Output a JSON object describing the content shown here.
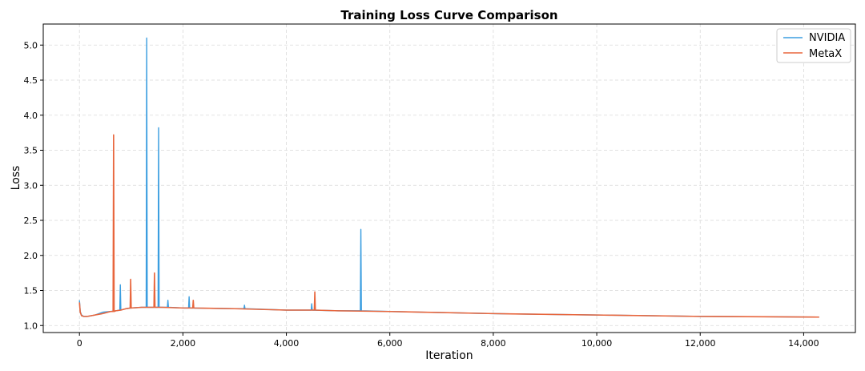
{
  "chart_data": {
    "type": "line",
    "title": "Training Loss Curve Comparison",
    "xlabel": "Iteration",
    "ylabel": "Loss",
    "xlim": [
      -700,
      15000
    ],
    "ylim": [
      0.9,
      5.3
    ],
    "grid": true,
    "legend_position": "top-right",
    "x_ticks": [
      0,
      2000,
      4000,
      6000,
      8000,
      10000,
      12000,
      14000
    ],
    "x_tick_labels": [
      "0",
      "2,000",
      "4,000",
      "6,000",
      "8,000",
      "10,000",
      "12,000",
      "14,000"
    ],
    "y_ticks": [
      1.0,
      1.5,
      2.0,
      2.5,
      3.0,
      3.5,
      4.0,
      4.5,
      5.0
    ],
    "y_tick_labels": [
      "1.0",
      "1.5",
      "2.0",
      "2.5",
      "3.0",
      "3.5",
      "4.0",
      "4.5",
      "5.0"
    ],
    "series": [
      {
        "name": "NVIDIA",
        "color": "#3b9ee0",
        "x": [
          0,
          15,
          40,
          80,
          150,
          300,
          450,
          600,
          700,
          780,
          790,
          800,
          900,
          1000,
          1200,
          1290,
          1300,
          1310,
          1400,
          1520,
          1530,
          1540,
          1600,
          1700,
          1710,
          1720,
          2000,
          2110,
          2120,
          2130,
          3000,
          3180,
          3190,
          3200,
          4000,
          4480,
          4490,
          4500,
          5000,
          5430,
          5440,
          5450,
          6000,
          8000,
          10000,
          12000,
          14300
        ],
        "y": [
          1.36,
          1.2,
          1.15,
          1.13,
          1.13,
          1.15,
          1.19,
          1.2,
          1.21,
          1.22,
          1.58,
          1.22,
          1.24,
          1.25,
          1.26,
          1.26,
          5.1,
          1.26,
          1.26,
          1.26,
          3.82,
          1.26,
          1.26,
          1.26,
          1.36,
          1.26,
          1.25,
          1.25,
          1.41,
          1.25,
          1.24,
          1.24,
          1.29,
          1.24,
          1.22,
          1.22,
          1.31,
          1.22,
          1.21,
          1.21,
          2.37,
          1.21,
          1.2,
          1.17,
          1.15,
          1.13,
          1.12
        ]
      },
      {
        "name": "MetaX",
        "color": "#e8663d",
        "x": [
          0,
          15,
          40,
          80,
          150,
          300,
          450,
          600,
          650,
          660,
          670,
          700,
          800,
          900,
          980,
          990,
          1000,
          1200,
          1440,
          1450,
          1460,
          1600,
          2000,
          2190,
          2200,
          2210,
          3000,
          4000,
          4540,
          4550,
          4560,
          5000,
          6000,
          8000,
          10000,
          12000,
          14300
        ],
        "y": [
          1.33,
          1.19,
          1.14,
          1.13,
          1.13,
          1.15,
          1.17,
          1.2,
          1.2,
          3.72,
          1.2,
          1.21,
          1.22,
          1.24,
          1.25,
          1.66,
          1.25,
          1.26,
          1.26,
          1.75,
          1.26,
          1.26,
          1.25,
          1.25,
          1.36,
          1.25,
          1.24,
          1.22,
          1.22,
          1.48,
          1.22,
          1.21,
          1.2,
          1.17,
          1.15,
          1.13,
          1.12
        ]
      }
    ]
  }
}
